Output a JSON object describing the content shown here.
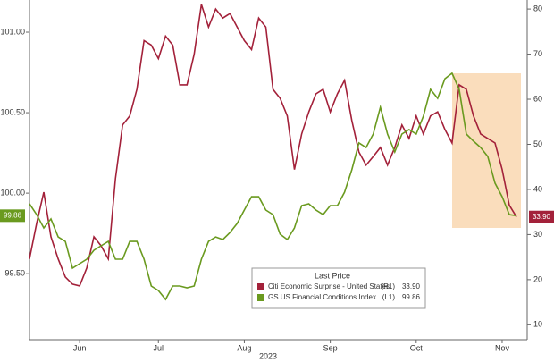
{
  "chart_data": {
    "type": "line",
    "categories": [
      null,
      null,
      null,
      null,
      null,
      null,
      null,
      "Jun",
      null,
      null,
      null,
      null,
      null,
      null,
      null,
      null,
      null,
      null,
      "Jul",
      null,
      null,
      null,
      null,
      null,
      null,
      null,
      null,
      null,
      null,
      null,
      "Aug",
      null,
      null,
      null,
      null,
      null,
      null,
      null,
      null,
      null,
      null,
      null,
      "Sep",
      null,
      null,
      null,
      null,
      null,
      null,
      null,
      null,
      null,
      null,
      null,
      "Oct",
      null,
      null,
      null,
      null,
      null,
      null,
      null,
      null,
      null,
      null,
      null,
      "Nov",
      null,
      null
    ],
    "xlabel": "2023",
    "legend_title": "Last Price",
    "series": [
      {
        "name": "Citi Economic Surprise - United States",
        "legend_axis": "(R1)",
        "last_label": "33.90",
        "color": "#a3213a",
        "axis": "y2",
        "values": [
          24.6,
          32.5,
          39.4,
          29.5,
          24.6,
          20.6,
          19,
          18.6,
          22.6,
          29.5,
          27.5,
          24.6,
          42.4,
          54.3,
          56.3,
          62.2,
          73,
          72,
          69,
          74,
          72,
          63.2,
          63.2,
          70,
          81,
          76,
          80,
          78,
          79,
          76,
          73,
          71,
          78,
          76,
          62.2,
          60.2,
          56.3,
          44.4,
          52.3,
          57.2,
          61.2,
          62.2,
          57.2,
          61.2,
          64.2,
          55.3,
          48.3,
          45.4,
          47.3,
          49.3,
          45.4,
          49.3,
          54.3,
          51.3,
          56.3,
          52.3,
          56.3,
          57.2,
          53.3,
          50.3,
          63.2,
          62.2,
          56.3,
          52.3,
          51.3,
          50.3,
          44.4,
          36.5,
          33.9
        ]
      },
      {
        "name": "GS US Financial Conditions Index",
        "legend_axis": "(L1)",
        "last_label": "99.86",
        "color": "#6a9a1f",
        "axis": "y",
        "values": [
          99.934,
          99.867,
          99.784,
          99.84,
          99.728,
          99.7,
          99.534,
          99.562,
          99.59,
          99.645,
          99.673,
          99.7,
          99.59,
          99.59,
          99.7,
          99.7,
          99.59,
          99.423,
          99.395,
          99.34,
          99.423,
          99.423,
          99.412,
          99.423,
          99.59,
          99.7,
          99.728,
          99.712,
          99.756,
          99.812,
          99.895,
          99.978,
          99.978,
          99.895,
          99.867,
          99.745,
          99.712,
          99.784,
          99.923,
          99.934,
          99.895,
          99.867,
          99.923,
          99.923,
          100.006,
          100.145,
          100.312,
          100.284,
          100.367,
          100.534,
          100.367,
          100.256,
          100.367,
          100.395,
          100.367,
          100.478,
          100.645,
          100.589,
          100.711,
          100.745,
          100.645,
          100.367,
          100.323,
          100.284,
          100.228,
          100.062,
          99.978,
          99.867,
          99.86
        ]
      }
    ],
    "ylim": [
      99.09,
      101.2
    ],
    "yticks": [
      {
        "value": 99.5,
        "label": "99.50"
      },
      {
        "value": 100,
        "label": "100.00"
      },
      {
        "value": 100.5,
        "label": "100.50"
      },
      {
        "value": 101,
        "label": "101.00"
      }
    ],
    "y2lim": [
      6.7,
      82
    ],
    "y2ticks": [
      10,
      20,
      30,
      40,
      50,
      60,
      70,
      80
    ],
    "grid": false
  }
}
